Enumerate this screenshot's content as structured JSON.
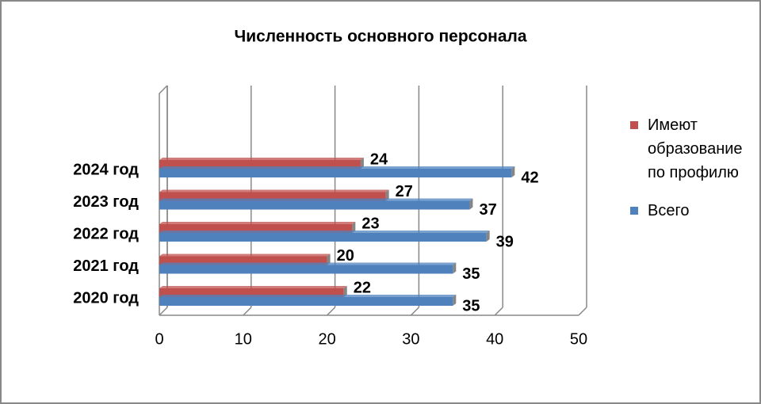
{
  "chart_data": {
    "type": "barh",
    "title": "Численность основного персонала",
    "categories": [
      "2020 год",
      "2021 год",
      "2022 год",
      "2023 год",
      "2024 год"
    ],
    "series": [
      {
        "name": "Имеют образование по профилю",
        "color": "#c0504d",
        "values": [
          22,
          20,
          23,
          27,
          24
        ]
      },
      {
        "name": "Всего",
        "color": "#4f81bd",
        "values": [
          35,
          35,
          39,
          37,
          42
        ]
      }
    ],
    "xlim": [
      0,
      50
    ],
    "xticks": [
      0,
      10,
      20,
      30,
      40,
      50
    ],
    "grid": true,
    "legend": "right"
  }
}
